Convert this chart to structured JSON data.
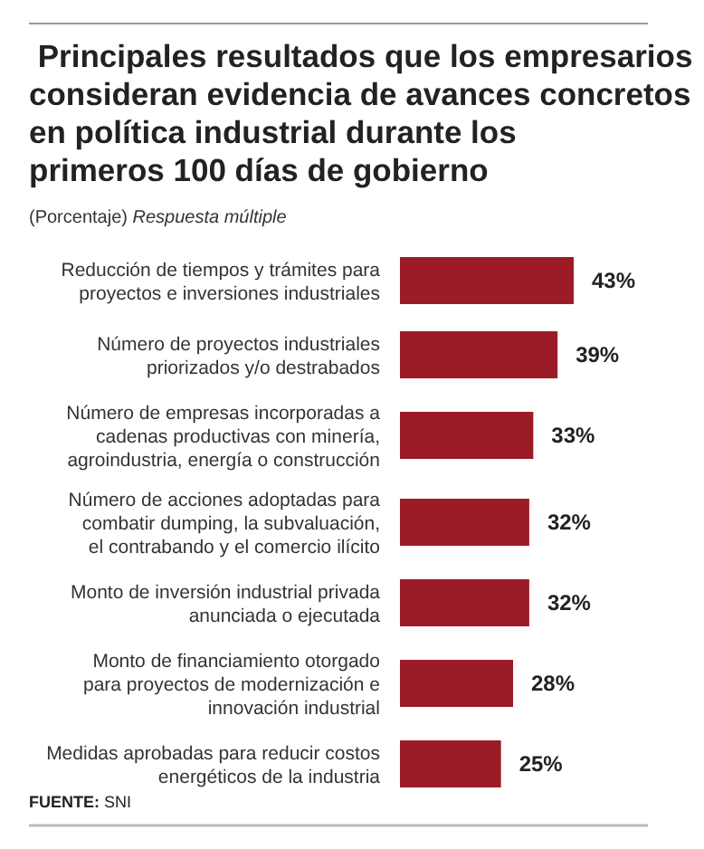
{
  "chart_data": {
    "type": "bar",
    "orientation": "horizontal",
    "title": " Principales resultados que los empresarios\nconsideran evidencia de avances concretos\nen política industrial durante los\nprimeros 100 días de gobierno",
    "subtitle": "(Porcentaje) Respuesta múltiple",
    "categories": [
      "Reducción de tiempos y trámites para\nproyectos e inversiones industriales",
      "Número de proyectos industriales\npriorizados y/o destrabados",
      "Número de empresas incorporadas a\ncadenas productivas con minería,\nagroindustria, energía o construcción",
      "Número de acciones adoptadas para\ncombatir dumping, la subvaluación,\nel contrabando y el comercio ilícito",
      "Monto de inversión industrial privada\nanunciada o ejecutada",
      "Monto de financiamiento otorgado\npara proyectos de modernización e\ninnovación industrial",
      "Medidas aprobadas para reducir costos\nenergéticos de la industria"
    ],
    "values": [
      43,
      39,
      33,
      32,
      32,
      28,
      25
    ],
    "value_labels": [
      "43%",
      "39%",
      "33%",
      "32%",
      "32%",
      "28%",
      "25%"
    ],
    "color": "#9b1c26",
    "annotations": [
      "FUENTE: SNI"
    ]
  }
}
